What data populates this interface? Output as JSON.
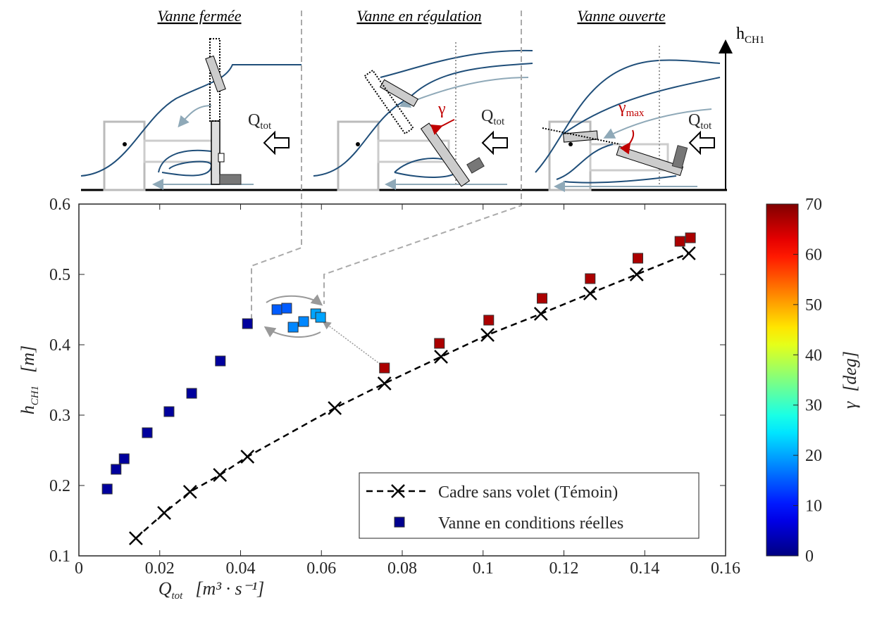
{
  "chart_data": {
    "type": "scatter",
    "xlabel": {
      "main": "Q",
      "sub": "tot",
      "unit": "[m³ · s⁻¹]"
    },
    "ylabel": {
      "main": "h",
      "sub": "CH1",
      "unit": "[m]"
    },
    "xlim": [
      0,
      0.16
    ],
    "xticks": [
      0,
      0.02,
      0.04,
      0.06,
      0.08,
      0.1,
      0.12,
      0.14,
      0.16
    ],
    "ylim": [
      0.1,
      0.6
    ],
    "yticks": [
      0.1,
      0.2,
      0.3,
      0.4,
      0.5,
      0.6
    ],
    "colorbar": {
      "label": "γ",
      "unit": "[deg]",
      "clim": [
        0,
        70
      ],
      "ticks": [
        0,
        10,
        20,
        30,
        40,
        50,
        60,
        70
      ],
      "colormap": "jet"
    },
    "legend": "bottom right",
    "series": [
      {
        "name": "Cadre sans volet (Témoin)",
        "color": "#000000",
        "marker": "x",
        "linestyle": "dashed",
        "x": [
          0.0141,
          0.0211,
          0.0275,
          0.0349,
          0.0417,
          0.0633,
          0.0756,
          0.0896,
          0.1011,
          0.1143,
          0.1265,
          0.138,
          0.1509
        ],
        "values": [
          0.125,
          0.161,
          0.191,
          0.215,
          0.241,
          0.31,
          0.345,
          0.383,
          0.414,
          0.444,
          0.473,
          0.5,
          0.53
        ]
      },
      {
        "name": "Vanne en conditions réelles",
        "color": "#00008f",
        "marker": "square",
        "x": [
          0.007,
          0.0092,
          0.0112,
          0.0169,
          0.0223,
          0.0279,
          0.035,
          0.0417,
          0.049,
          0.0514,
          0.053,
          0.0556,
          0.0586,
          0.0598,
          0.0756,
          0.0892,
          0.1014,
          0.1146,
          0.1265,
          0.1383,
          0.1487,
          0.1513
        ],
        "values": [
          0.195,
          0.223,
          0.238,
          0.275,
          0.305,
          0.331,
          0.377,
          0.43,
          0.45,
          0.452,
          0.425,
          0.433,
          0.444,
          0.439,
          0.367,
          0.402,
          0.435,
          0.466,
          0.494,
          0.523,
          0.547,
          0.552
        ],
        "c": [
          2,
          2,
          2,
          2,
          2,
          2,
          2,
          2,
          15,
          15,
          18,
          18,
          20,
          20,
          67,
          67,
          67,
          67,
          67,
          67,
          67,
          67
        ]
      }
    ]
  },
  "schematic": {
    "panels": [
      {
        "title": "Vanne fermée",
        "flow": {
          "main": "Q",
          "sub": "tot"
        }
      },
      {
        "title": "Vanne en régulation",
        "flow": {
          "main": "Q",
          "sub": "tot"
        },
        "angle": {
          "main": "γ"
        }
      },
      {
        "title": "Vanne ouverte",
        "flow": {
          "main": "Q",
          "sub": "tot"
        },
        "angle": {
          "main": "γ",
          "sub": "max"
        }
      }
    ],
    "axis": {
      "main": "h",
      "sub": "CH1"
    }
  }
}
